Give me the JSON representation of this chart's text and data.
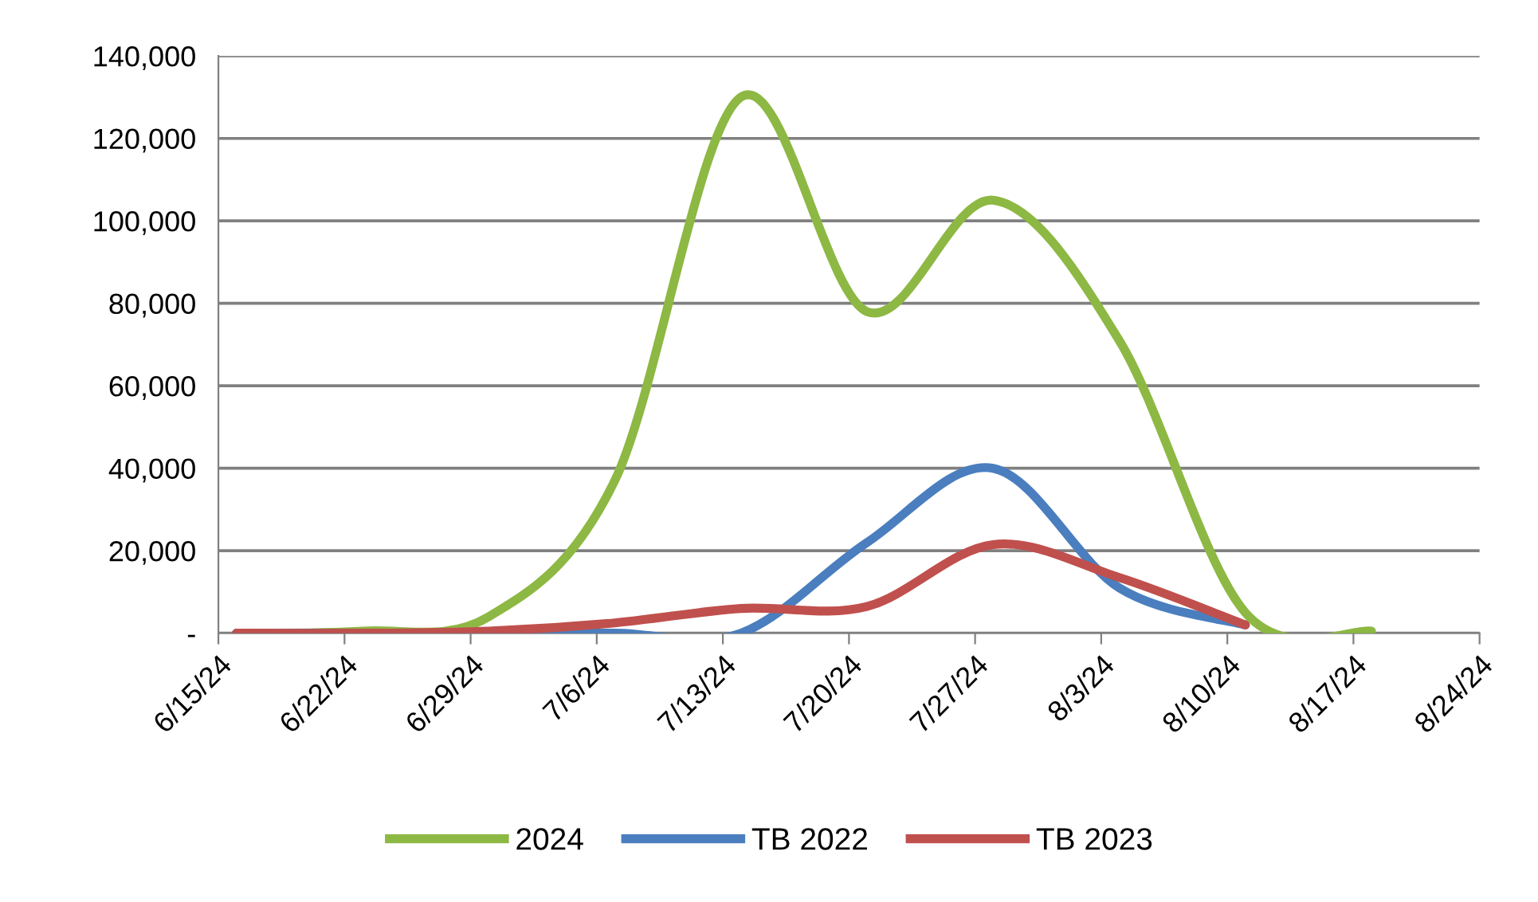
{
  "chart_data": {
    "type": "line",
    "x": [
      "2024-06-16",
      "2024-06-23",
      "2024-06-30",
      "2024-07-07",
      "2024-07-14",
      "2024-07-21",
      "2024-07-28",
      "2024-08-04",
      "2024-08-11",
      "2024-08-18"
    ],
    "series": [
      {
        "name": "2024",
        "color": "#8db843",
        "values": [
          0,
          500,
          4000,
          37000,
          130000,
          78000,
          105000,
          71000,
          5000,
          500
        ]
      },
      {
        "name": "TB 2022",
        "color": "#4a7ebf",
        "values": [
          0,
          0,
          0,
          0,
          0,
          22000,
          40000,
          11000,
          2000,
          null
        ]
      },
      {
        "name": "TB 2023",
        "color": "#c0504d",
        "values": [
          0,
          0,
          500,
          2500,
          6000,
          6500,
          21500,
          13500,
          2000,
          null
        ]
      }
    ],
    "xlim": [
      "2024-06-15",
      "2024-08-24"
    ],
    "xticks": [
      {
        "value": "2024-06-15",
        "label": "6/15/24"
      },
      {
        "value": "2024-06-22",
        "label": "6/22/24"
      },
      {
        "value": "2024-06-29",
        "label": "6/29/24"
      },
      {
        "value": "2024-07-06",
        "label": "7/6/24"
      },
      {
        "value": "2024-07-13",
        "label": "7/13/24"
      },
      {
        "value": "2024-07-20",
        "label": "7/20/24"
      },
      {
        "value": "2024-07-27",
        "label": "7/27/24"
      },
      {
        "value": "2024-08-03",
        "label": "8/3/24"
      },
      {
        "value": "2024-08-10",
        "label": "8/10/24"
      },
      {
        "value": "2024-08-17",
        "label": "8/17/24"
      },
      {
        "value": "2024-08-24",
        "label": "8/24/24"
      }
    ],
    "ylim": [
      0,
      140000
    ],
    "yticks": [
      {
        "value": 0,
        "label": "-"
      },
      {
        "value": 20000,
        "label": "20,000"
      },
      {
        "value": 40000,
        "label": "40,000"
      },
      {
        "value": 60000,
        "label": "60,000"
      },
      {
        "value": 80000,
        "label": "80,000"
      },
      {
        "value": 100000,
        "label": "100,000"
      },
      {
        "value": 120000,
        "label": "120,000"
      },
      {
        "value": 140000,
        "label": "140,000"
      }
    ],
    "grid": "y",
    "legend": "bottom",
    "marker": "none",
    "line_style": "solid"
  }
}
